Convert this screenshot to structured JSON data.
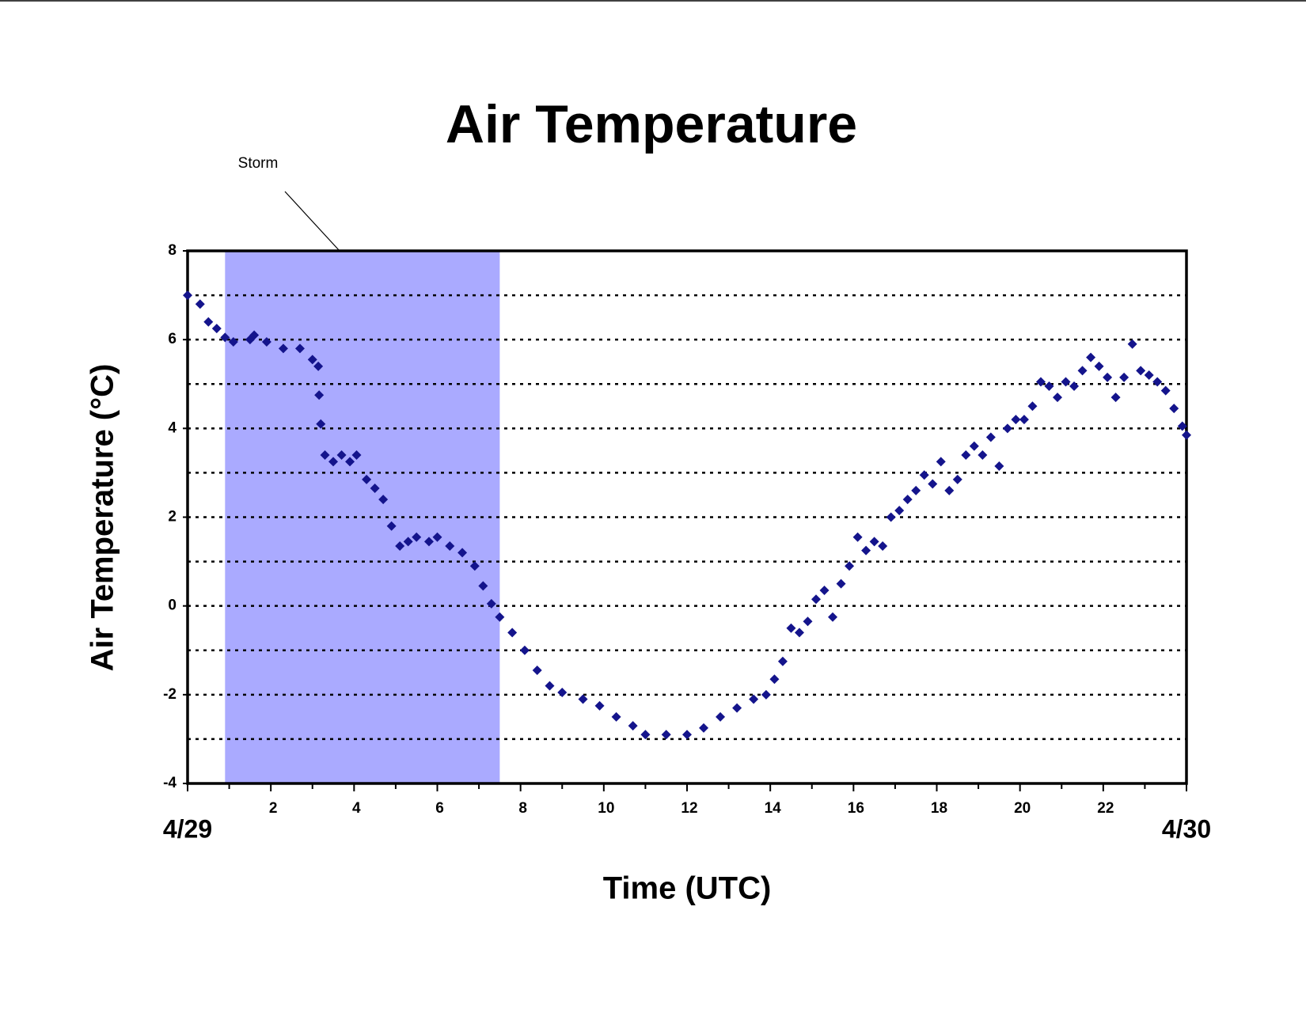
{
  "chart_data": {
    "type": "scatter",
    "title": "Air Temperature",
    "x_label": "Time (UTC)",
    "y_label": "Air Temperature (°C)",
    "annotation": {
      "text": "Storm",
      "x_start": 0.9,
      "x_end": 7.5,
      "color": "#aaaaff"
    },
    "xlim": [
      0,
      24
    ],
    "ylim": [
      -4,
      8
    ],
    "xticks": [
      {
        "value": 0,
        "label": "4/29"
      },
      2,
      4,
      6,
      8,
      10,
      12,
      14,
      16,
      18,
      20,
      22,
      {
        "value": 24,
        "label": "4/30"
      }
    ],
    "xminorticks": [
      1,
      3,
      5,
      7,
      9,
      11,
      13,
      15,
      17,
      19,
      21,
      23
    ],
    "yticks": [
      -4,
      -2,
      0,
      2,
      4,
      6,
      8
    ],
    "ygrid": [
      -3,
      -2,
      -1,
      0,
      1,
      2,
      3,
      4,
      5,
      6,
      7
    ],
    "grid": true,
    "series": [
      {
        "name": "Air Temperature",
        "color": "#14148c",
        "x": [
          0,
          0.3,
          0.5,
          0.7,
          0.9,
          1.1,
          1.5,
          1.6,
          1.9,
          2.3,
          2.7,
          3.0,
          3.14,
          3.16,
          3.2,
          3.3,
          3.5,
          3.7,
          3.9,
          4.06,
          4.3,
          4.5,
          4.7,
          4.9,
          5.1,
          5.3,
          5.5,
          5.8,
          6.0,
          6.3,
          6.6,
          6.9,
          7.1,
          7.3,
          7.5,
          7.8,
          8.1,
          8.4,
          8.7,
          9.0,
          9.5,
          9.9,
          10.3,
          10.7,
          11.0,
          11.5,
          12.0,
          12.4,
          12.8,
          13.2,
          13.6,
          13.9,
          14.1,
          14.3,
          14.5,
          14.7,
          14.9,
          15.1,
          15.3,
          15.5,
          15.7,
          15.9,
          16.1,
          16.3,
          16.5,
          16.7,
          16.9,
          17.1,
          17.3,
          17.5,
          17.7,
          17.9,
          18.1,
          18.3,
          18.5,
          18.7,
          18.9,
          19.1,
          19.3,
          19.5,
          19.7,
          19.9,
          20.1,
          20.3,
          20.5,
          20.7,
          20.9,
          21.1,
          21.3,
          21.5,
          21.7,
          21.9,
          22.1,
          22.3,
          22.5,
          22.7,
          22.9,
          23.1,
          23.3,
          23.5,
          23.7,
          23.9,
          24.0
        ],
        "values": [
          7.0,
          6.8,
          6.4,
          6.25,
          6.05,
          5.95,
          6.0,
          6.1,
          5.95,
          5.8,
          5.8,
          5.55,
          5.4,
          4.75,
          4.1,
          3.4,
          3.25,
          3.4,
          3.25,
          3.4,
          2.85,
          2.65,
          2.4,
          1.8,
          1.35,
          1.45,
          1.55,
          1.45,
          1.55,
          1.35,
          1.2,
          0.9,
          0.45,
          0.05,
          -0.25,
          -0.6,
          -1.0,
          -1.45,
          -1.8,
          -1.95,
          -2.1,
          -2.25,
          -2.5,
          -2.7,
          -2.9,
          -2.9,
          -2.9,
          -2.75,
          -2.5,
          -2.3,
          -2.1,
          -2.0,
          -1.65,
          -1.25,
          -0.5,
          -0.6,
          -0.35,
          0.15,
          0.35,
          -0.25,
          0.5,
          0.9,
          1.55,
          1.25,
          1.45,
          1.35,
          2.0,
          2.15,
          2.4,
          2.6,
          2.95,
          2.75,
          3.25,
          2.6,
          2.85,
          3.4,
          3.6,
          3.4,
          3.8,
          3.15,
          4.0,
          4.2,
          4.2,
          4.5,
          5.05,
          4.95,
          4.7,
          5.05,
          4.95,
          5.3,
          5.6,
          5.4,
          5.15,
          4.7,
          5.15,
          5.9,
          5.3,
          5.2,
          5.05,
          4.85,
          4.45,
          4.05,
          3.85
        ]
      }
    ]
  }
}
